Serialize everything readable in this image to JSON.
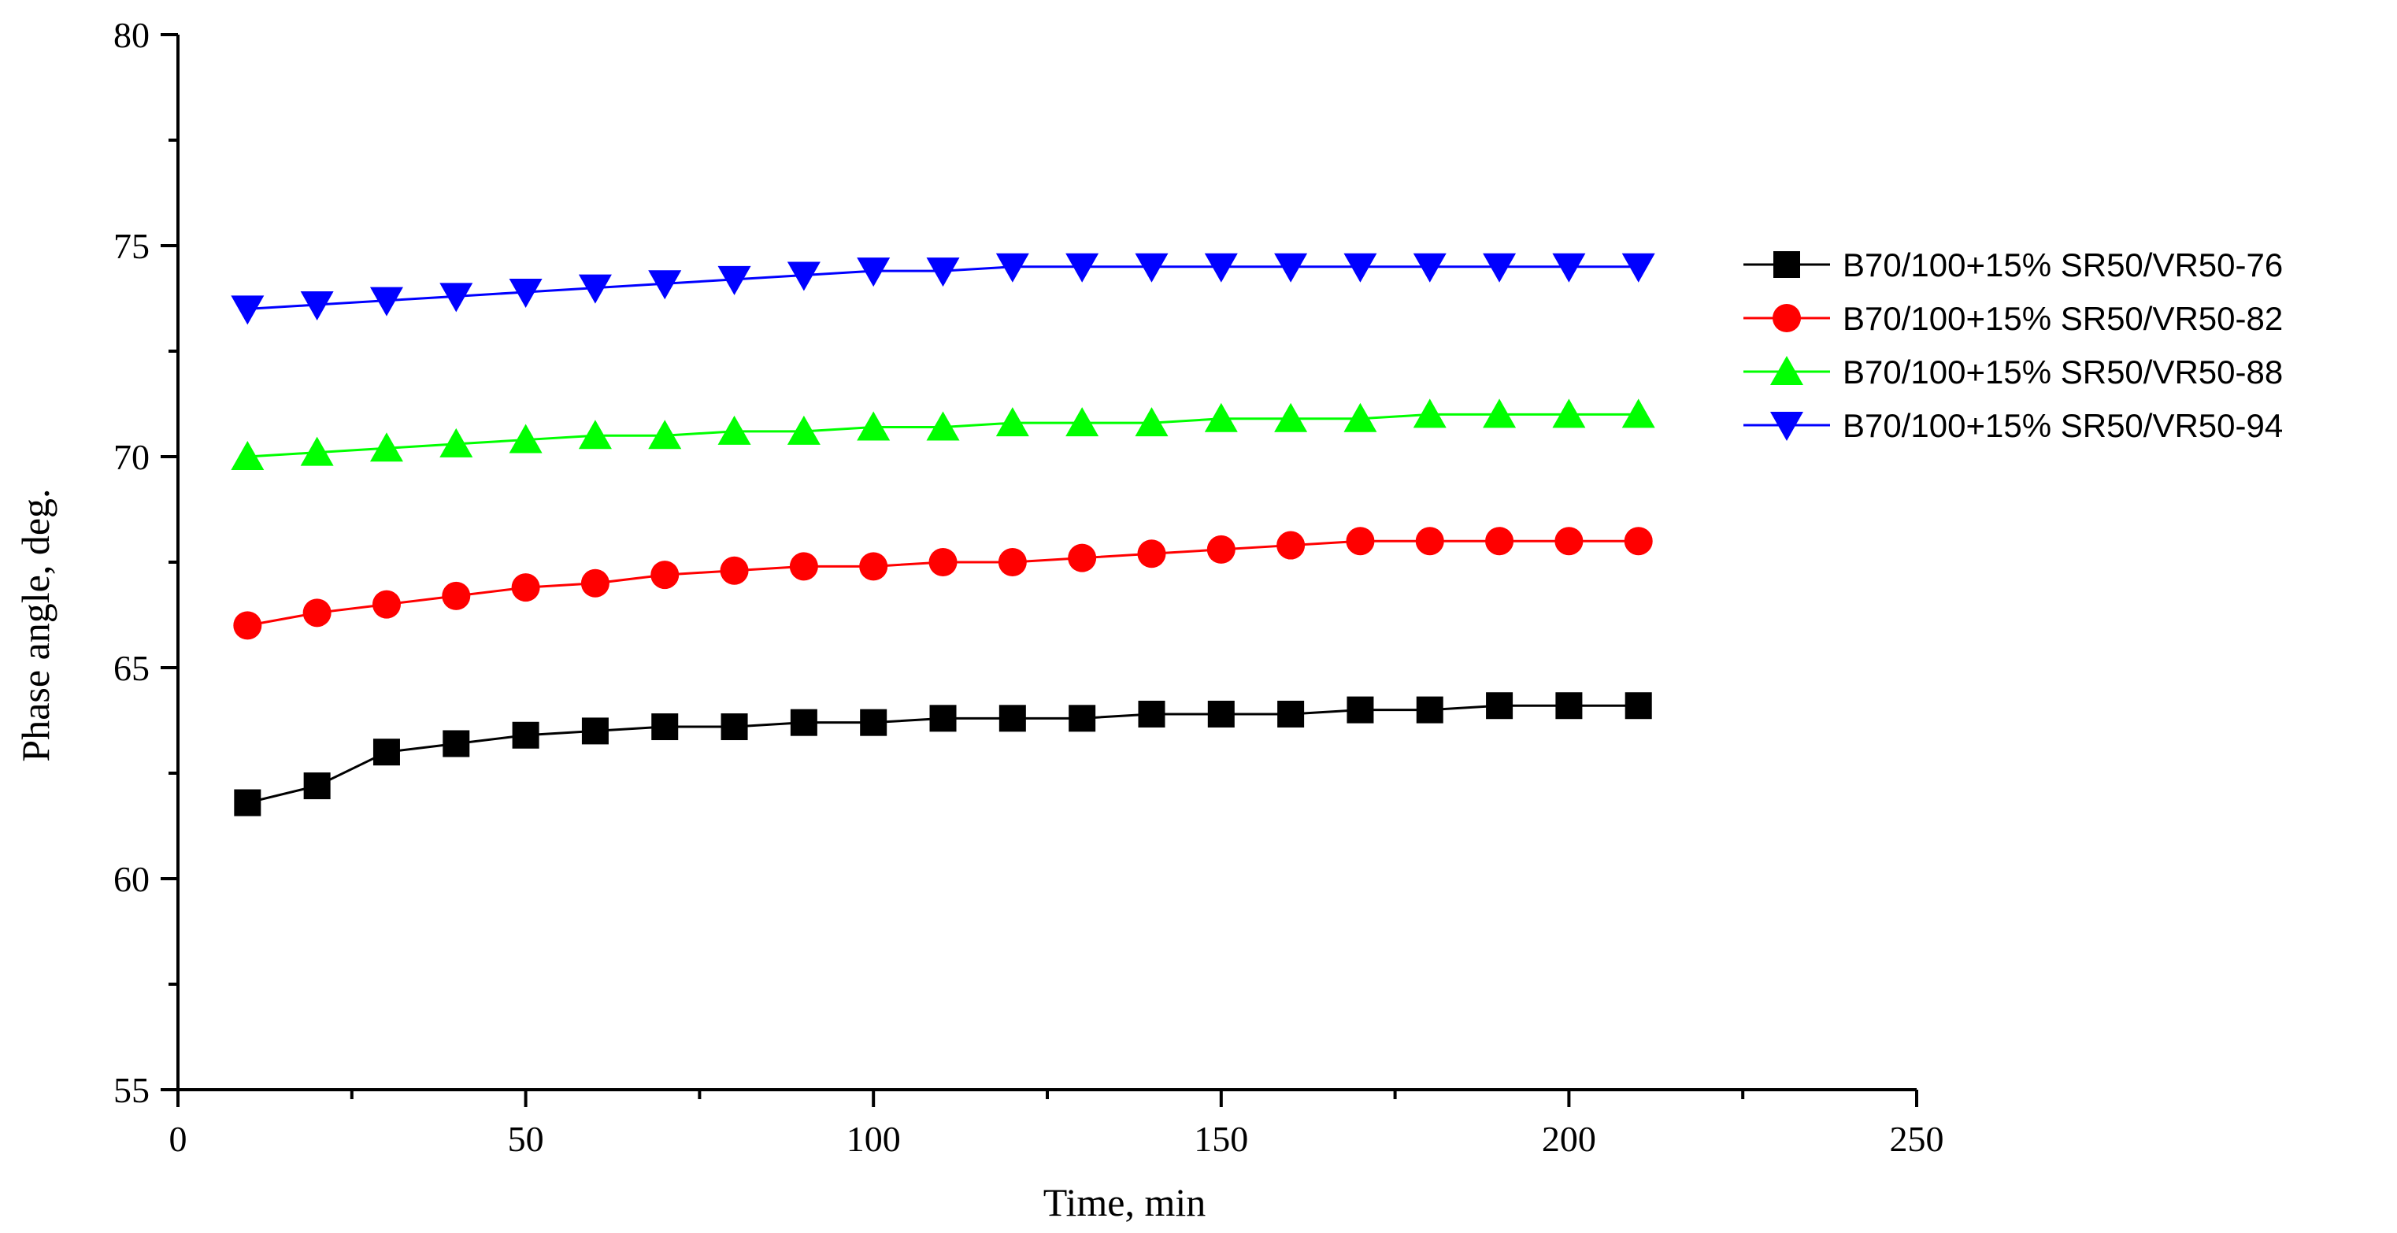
{
  "chart_data": {
    "type": "line",
    "title": "",
    "xlabel": "Time, min",
    "ylabel": "Phase angle, deg.",
    "xlim": [
      0,
      250
    ],
    "ylim": [
      55,
      80
    ],
    "xticks": [
      0,
      50,
      100,
      150,
      200,
      250
    ],
    "yticks": [
      55,
      60,
      65,
      70,
      75,
      80
    ],
    "grid": false,
    "legend_position": "right",
    "x": [
      10,
      20,
      30,
      40,
      50,
      60,
      70,
      80,
      90,
      100,
      110,
      120,
      130,
      140,
      150,
      160,
      170,
      180,
      190,
      200,
      210
    ],
    "series": [
      {
        "name": "B70/100+15% SR50/VR50-76",
        "color": "#000000",
        "marker": "square",
        "values": [
          61.8,
          62.2,
          63.0,
          63.2,
          63.4,
          63.5,
          63.6,
          63.6,
          63.7,
          63.7,
          63.8,
          63.8,
          63.8,
          63.9,
          63.9,
          63.9,
          64.0,
          64.0,
          64.1,
          64.1,
          64.1
        ]
      },
      {
        "name": "B70/100+15% SR50/VR50-82",
        "color": "#ff0000",
        "marker": "circle",
        "values": [
          66.0,
          66.3,
          66.5,
          66.7,
          66.9,
          67.0,
          67.2,
          67.3,
          67.4,
          67.4,
          67.5,
          67.5,
          67.6,
          67.7,
          67.8,
          67.9,
          68.0,
          68.0,
          68.0,
          68.0,
          68.0
        ]
      },
      {
        "name": "B70/100+15% SR50/VR50-88",
        "color": "#00ff00",
        "marker": "triangle-up",
        "values": [
          70.0,
          70.1,
          70.2,
          70.3,
          70.4,
          70.5,
          70.5,
          70.6,
          70.6,
          70.7,
          70.7,
          70.8,
          70.8,
          70.8,
          70.9,
          70.9,
          70.9,
          71.0,
          71.0,
          71.0,
          71.0
        ]
      },
      {
        "name": "B70/100+15% SR50/VR50-94",
        "color": "#0000ff",
        "marker": "triangle-down",
        "values": [
          73.5,
          73.6,
          73.7,
          73.8,
          73.9,
          74.0,
          74.1,
          74.2,
          74.3,
          74.4,
          74.4,
          74.5,
          74.5,
          74.5,
          74.5,
          74.5,
          74.5,
          74.5,
          74.5,
          74.5,
          74.5
        ]
      }
    ]
  }
}
